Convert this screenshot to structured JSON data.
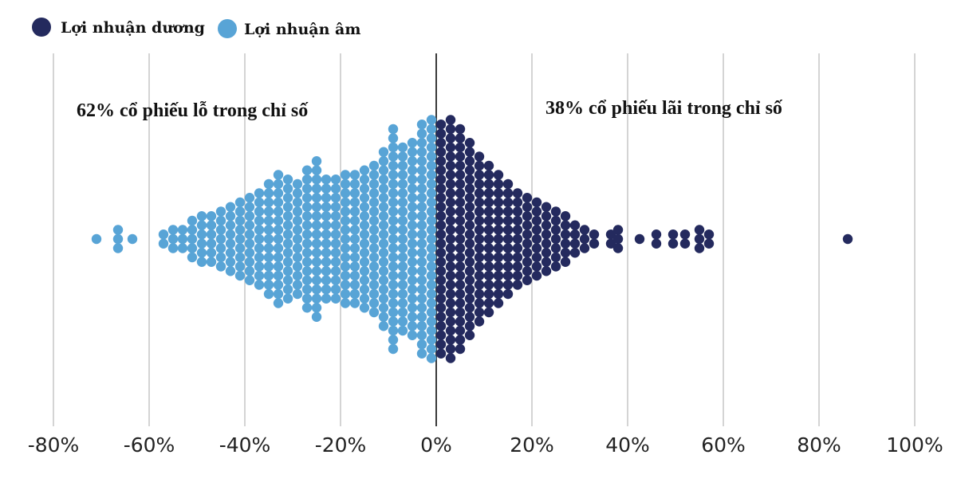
{
  "chart_data": {
    "type": "scatter",
    "subtype": "beeswarm",
    "title": "",
    "xlabel": "",
    "ylabel": "",
    "xlim": [
      -80,
      100
    ],
    "x_ticks": [
      "-80%",
      "-60%",
      "-40%",
      "-20%",
      "0%",
      "20%",
      "40%",
      "60%",
      "80%",
      "100%"
    ],
    "x_tick_values": [
      -80,
      -60,
      -40,
      -20,
      0,
      20,
      40,
      60,
      80,
      100
    ],
    "grid": true,
    "legend_position": "top-left",
    "legend": [
      {
        "label": "Lợi nhuận dương",
        "color": "#242a5e"
      },
      {
        "label": "Lợi nhuận âm",
        "color": "#58a4d6"
      }
    ],
    "annotations": {
      "negative": "62% cổ phiếu lỗ trong chỉ số",
      "positive": "38% cổ phiếu lãi trong chỉ số"
    },
    "series": [
      {
        "name": "Lợi nhuận dương",
        "color": "#242a5e",
        "bins": [
          {
            "x": 1,
            "count": 26
          },
          {
            "x": 3,
            "count": 27
          },
          {
            "x": 5,
            "count": 25
          },
          {
            "x": 7,
            "count": 22
          },
          {
            "x": 9,
            "count": 19
          },
          {
            "x": 11,
            "count": 17
          },
          {
            "x": 13,
            "count": 15
          },
          {
            "x": 15,
            "count": 13
          },
          {
            "x": 17,
            "count": 11
          },
          {
            "x": 19,
            "count": 10
          },
          {
            "x": 21,
            "count": 9
          },
          {
            "x": 23,
            "count": 8
          },
          {
            "x": 25,
            "count": 7
          },
          {
            "x": 27,
            "count": 6
          },
          {
            "x": 29,
            "count": 4
          },
          {
            "x": 31,
            "count": 3
          },
          {
            "x": 33,
            "count": 2
          },
          {
            "x": 36.5,
            "count": 2
          },
          {
            "x": 38,
            "count": 3
          },
          {
            "x": 42.5,
            "count": 1
          },
          {
            "x": 46,
            "count": 2
          },
          {
            "x": 49.5,
            "count": 2
          },
          {
            "x": 52,
            "count": 2
          },
          {
            "x": 55,
            "count": 3
          },
          {
            "x": 57,
            "count": 2
          },
          {
            "x": 86,
            "count": 1
          }
        ]
      },
      {
        "name": "Lợi nhuận âm",
        "color": "#58a4d6",
        "bins": [
          {
            "x": -1,
            "count": 27
          },
          {
            "x": -3,
            "count": 26
          },
          {
            "x": -5,
            "count": 22
          },
          {
            "x": -7,
            "count": 21
          },
          {
            "x": -9,
            "count": 25
          },
          {
            "x": -11,
            "count": 20
          },
          {
            "x": -13,
            "count": 17
          },
          {
            "x": -15,
            "count": 16
          },
          {
            "x": -17,
            "count": 15
          },
          {
            "x": -19,
            "count": 15
          },
          {
            "x": -21,
            "count": 14
          },
          {
            "x": -23,
            "count": 14
          },
          {
            "x": -25,
            "count": 18
          },
          {
            "x": -27,
            "count": 16
          },
          {
            "x": -29,
            "count": 13
          },
          {
            "x": -31,
            "count": 14
          },
          {
            "x": -33,
            "count": 15
          },
          {
            "x": -35,
            "count": 13
          },
          {
            "x": -37,
            "count": 11
          },
          {
            "x": -39,
            "count": 10
          },
          {
            "x": -41,
            "count": 9
          },
          {
            "x": -43,
            "count": 8
          },
          {
            "x": -45,
            "count": 7
          },
          {
            "x": -47,
            "count": 6
          },
          {
            "x": -49,
            "count": 6
          },
          {
            "x": -51,
            "count": 5
          },
          {
            "x": -53,
            "count": 3
          },
          {
            "x": -55,
            "count": 3
          },
          {
            "x": -57,
            "count": 2
          },
          {
            "x": -63.5,
            "count": 1
          },
          {
            "x": -66.5,
            "count": 3
          },
          {
            "x": -71,
            "count": 1
          }
        ]
      }
    ]
  }
}
